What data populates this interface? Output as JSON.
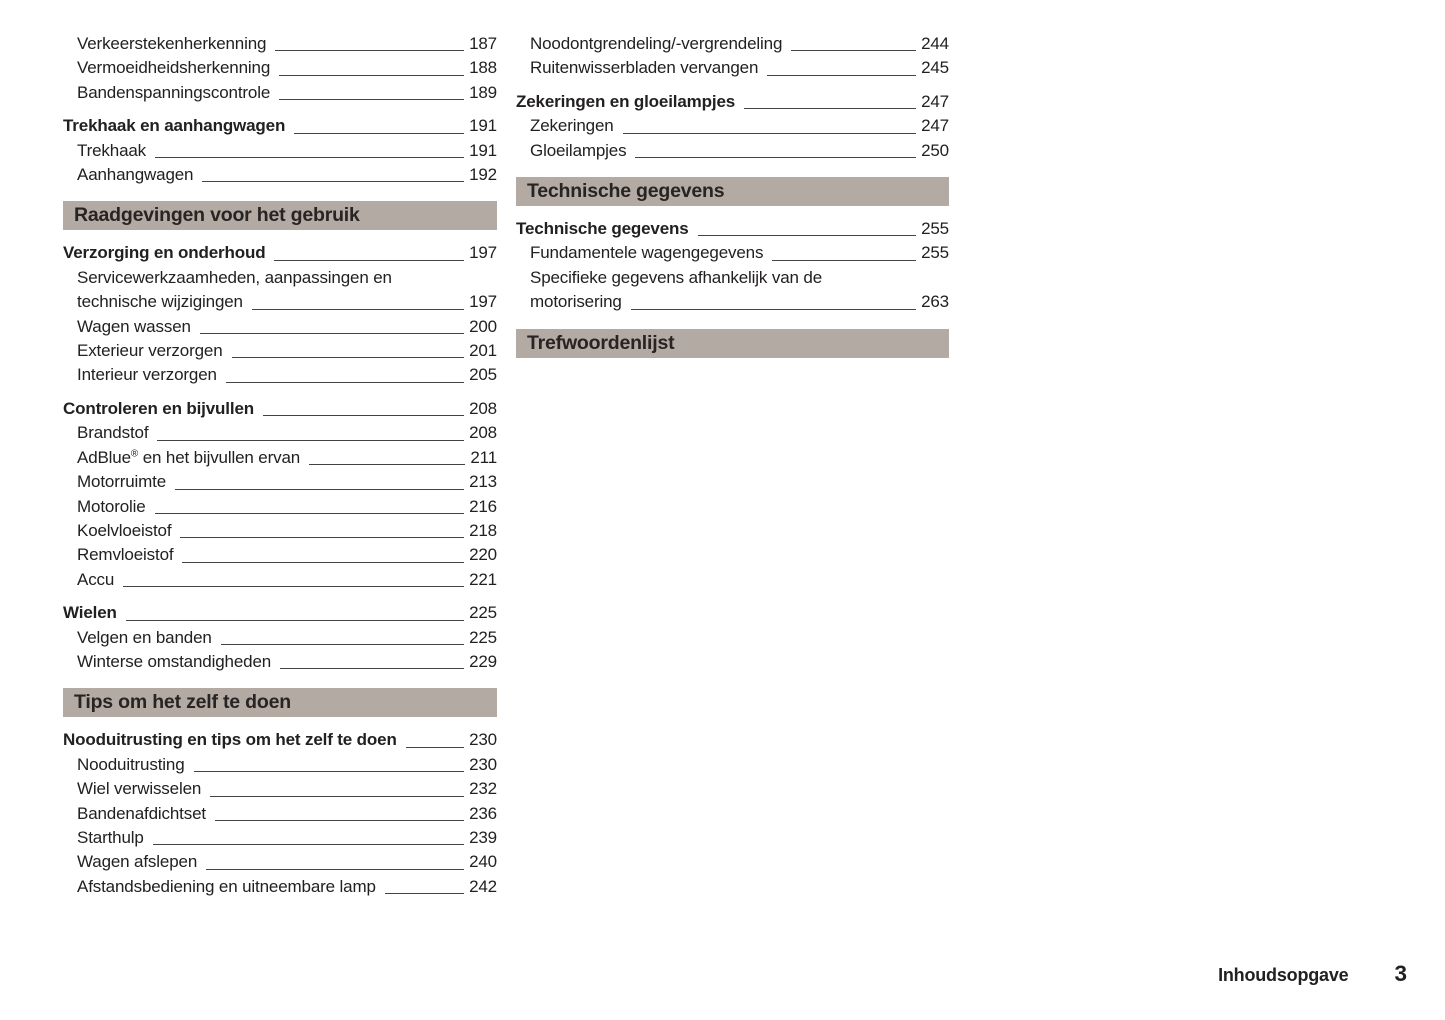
{
  "footer": {
    "label": "Inhoudsopgave",
    "page_number": "3"
  },
  "colors": {
    "band_bg": "#b2aaa3",
    "text": "#232021",
    "leader_line": "#464443"
  },
  "columns": [
    {
      "blocks": [
        {
          "type": "group",
          "entries": [
            {
              "label": "Verkeerstekenherkenning",
              "page": "187",
              "bold": false,
              "indent": true
            },
            {
              "label": "Vermoeidheidsherkenning",
              "page": "188",
              "bold": false,
              "indent": true
            },
            {
              "label": "Bandenspanningscontrole",
              "page": "189",
              "bold": false,
              "indent": true
            }
          ]
        },
        {
          "type": "group",
          "entries": [
            {
              "label": "Trekhaak en aanhangwagen",
              "page": "191",
              "bold": true,
              "indent": false
            },
            {
              "label": "Trekhaak",
              "page": "191",
              "bold": false,
              "indent": true
            },
            {
              "label": "Aanhangwagen",
              "page": "192",
              "bold": false,
              "indent": true
            }
          ]
        },
        {
          "type": "band",
          "label": "Raadgevingen voor het gebruik"
        },
        {
          "type": "group",
          "entries": [
            {
              "label": "Verzorging en onderhoud",
              "page": "197",
              "bold": true,
              "indent": false
            },
            {
              "label_lines": [
                "Servicewerkzaamheden, aanpassingen en",
                "technische wijzigingen"
              ],
              "page": "197",
              "bold": false,
              "indent": true
            },
            {
              "label": "Wagen wassen",
              "page": "200",
              "bold": false,
              "indent": true
            },
            {
              "label": "Exterieur verzorgen",
              "page": "201",
              "bold": false,
              "indent": true
            },
            {
              "label": "Interieur verzorgen",
              "page": "205",
              "bold": false,
              "indent": true
            }
          ]
        },
        {
          "type": "group",
          "entries": [
            {
              "label": "Controleren en bijvullen",
              "page": "208",
              "bold": true,
              "indent": false
            },
            {
              "label": "Brandstof",
              "page": "208",
              "bold": false,
              "indent": true
            },
            {
              "label": "AdBlue",
              "label_sup": "®",
              "label_rest": " en het bijvullen ervan",
              "page": "211",
              "bold": false,
              "indent": true
            },
            {
              "label": "Motorruimte",
              "page": "213",
              "bold": false,
              "indent": true
            },
            {
              "label": "Motorolie",
              "page": "216",
              "bold": false,
              "indent": true
            },
            {
              "label": "Koelvloeistof",
              "page": "218",
              "bold": false,
              "indent": true
            },
            {
              "label": "Remvloeistof",
              "page": "220",
              "bold": false,
              "indent": true
            },
            {
              "label": "Accu",
              "page": "221",
              "bold": false,
              "indent": true
            }
          ]
        },
        {
          "type": "group",
          "entries": [
            {
              "label": "Wielen",
              "page": "225",
              "bold": true,
              "indent": false
            },
            {
              "label": "Velgen en banden",
              "page": "225",
              "bold": false,
              "indent": true
            },
            {
              "label": "Winterse omstandigheden",
              "page": "229",
              "bold": false,
              "indent": true
            }
          ]
        },
        {
          "type": "band",
          "label": "Tips om het zelf te doen"
        },
        {
          "type": "group",
          "entries": [
            {
              "label": "Nooduitrusting en tips om het zelf te doen",
              "page": "230",
              "bold": true,
              "indent": false
            },
            {
              "label": "Nooduitrusting",
              "page": "230",
              "bold": false,
              "indent": true
            },
            {
              "label": "Wiel verwisselen",
              "page": "232",
              "bold": false,
              "indent": true
            },
            {
              "label": "Bandenafdichtset",
              "page": "236",
              "bold": false,
              "indent": true
            },
            {
              "label": "Starthulp",
              "page": "239",
              "bold": false,
              "indent": true
            },
            {
              "label": "Wagen afslepen",
              "page": "240",
              "bold": false,
              "indent": true
            },
            {
              "label": "Afstandsbediening en uitneembare lamp",
              "page": "242",
              "bold": false,
              "indent": true
            }
          ]
        }
      ]
    },
    {
      "blocks": [
        {
          "type": "group",
          "entries": [
            {
              "label": "Noodontgrendeling/-vergrendeling",
              "page": "244",
              "bold": false,
              "indent": true
            },
            {
              "label": "Ruitenwisserbladen vervangen",
              "page": "245",
              "bold": false,
              "indent": true
            }
          ]
        },
        {
          "type": "group",
          "entries": [
            {
              "label": "Zekeringen en gloeilampjes",
              "page": "247",
              "bold": true,
              "indent": false
            },
            {
              "label": "Zekeringen",
              "page": "247",
              "bold": false,
              "indent": true
            },
            {
              "label": "Gloeilampjes",
              "page": "250",
              "bold": false,
              "indent": true
            }
          ]
        },
        {
          "type": "band",
          "label": "Technische gegevens"
        },
        {
          "type": "group",
          "entries": [
            {
              "label": "Technische gegevens",
              "page": "255",
              "bold": true,
              "indent": false
            },
            {
              "label": "Fundamentele wagengegevens",
              "page": "255",
              "bold": false,
              "indent": true
            },
            {
              "label_lines": [
                "Specifieke gegevens afhankelijk van de",
                "motorisering"
              ],
              "page": "263",
              "bold": false,
              "indent": true
            }
          ]
        },
        {
          "type": "band",
          "label": "Trefwoordenlijst"
        }
      ]
    }
  ]
}
